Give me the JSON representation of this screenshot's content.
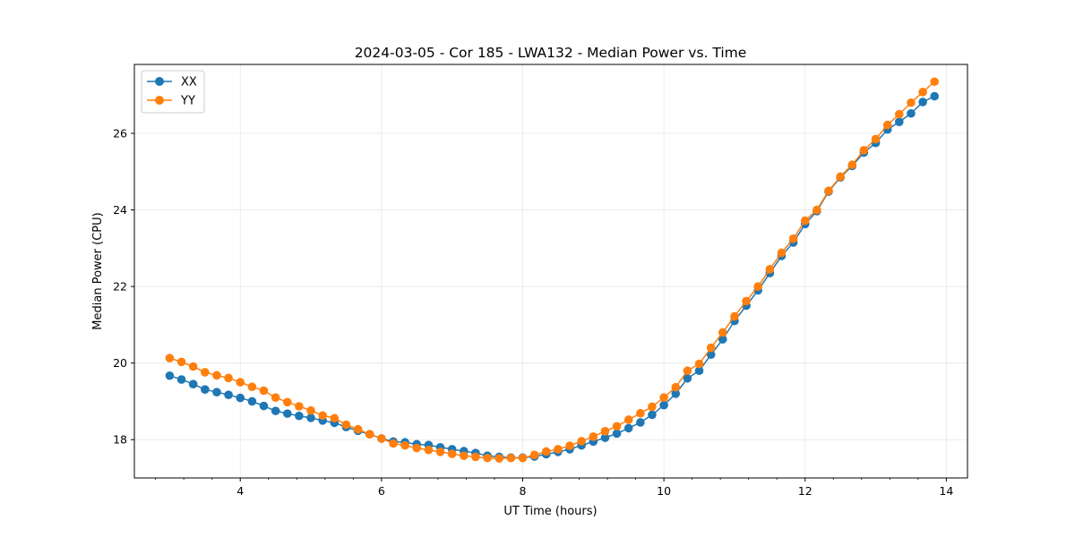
{
  "chart_data": {
    "type": "line",
    "title": "2024-03-05 - Cor 185 - LWA132 - Median Power vs. Time",
    "xlabel": "UT Time (hours)",
    "ylabel": "Median Power (CPU)",
    "xlim": [
      2.5,
      14.3
    ],
    "ylim": [
      17.0,
      27.8
    ],
    "x_ticks": [
      4,
      6,
      8,
      10,
      12,
      14
    ],
    "x_tick_labels": [
      "4",
      "6",
      "8",
      "10",
      "12",
      "14"
    ],
    "y_ticks": [
      18,
      20,
      22,
      24,
      26
    ],
    "y_tick_labels": [
      "18",
      "20",
      "22",
      "24",
      "26"
    ],
    "grid": true,
    "legend_position": "top-left",
    "x": [
      3.0,
      3.167,
      3.333,
      3.5,
      3.667,
      3.833,
      4.0,
      4.167,
      4.333,
      4.5,
      4.667,
      4.833,
      5.0,
      5.167,
      5.333,
      5.5,
      5.667,
      5.833,
      6.0,
      6.167,
      6.333,
      6.5,
      6.667,
      6.833,
      7.0,
      7.167,
      7.333,
      7.5,
      7.667,
      7.833,
      8.0,
      8.167,
      8.333,
      8.5,
      8.667,
      8.833,
      9.0,
      9.167,
      9.333,
      9.5,
      9.667,
      9.833,
      10.0,
      10.167,
      10.333,
      10.5,
      10.667,
      10.833,
      11.0,
      11.167,
      11.333,
      11.5,
      11.667,
      11.833,
      12.0,
      12.167,
      12.333,
      12.5,
      12.667,
      12.833,
      13.0,
      13.167,
      13.333,
      13.5,
      13.667,
      13.833
    ],
    "series": [
      {
        "name": "XX",
        "color": "#1f77b4",
        "values": [
          19.67,
          19.57,
          19.45,
          19.31,
          19.24,
          19.17,
          19.09,
          19.0,
          18.88,
          18.75,
          18.68,
          18.62,
          18.57,
          18.5,
          18.44,
          18.33,
          18.23,
          18.14,
          18.03,
          17.95,
          17.93,
          17.88,
          17.86,
          17.8,
          17.75,
          17.7,
          17.65,
          17.58,
          17.55,
          17.53,
          17.53,
          17.56,
          17.62,
          17.68,
          17.75,
          17.85,
          17.95,
          18.05,
          18.16,
          18.3,
          18.45,
          18.65,
          18.9,
          19.2,
          19.6,
          19.8,
          20.22,
          20.62,
          21.1,
          21.5,
          21.9,
          22.35,
          22.8,
          23.15,
          23.63,
          23.97,
          24.48,
          24.85,
          25.15,
          25.5,
          25.75,
          26.1,
          26.3,
          26.52,
          26.82,
          26.97
        ]
      },
      {
        "name": "YY",
        "color": "#ff7f0e",
        "values": [
          20.13,
          20.03,
          19.91,
          19.76,
          19.68,
          19.61,
          19.5,
          19.38,
          19.28,
          19.1,
          18.98,
          18.87,
          18.76,
          18.63,
          18.56,
          18.39,
          18.27,
          18.14,
          18.03,
          17.9,
          17.85,
          17.78,
          17.73,
          17.68,
          17.63,
          17.58,
          17.55,
          17.52,
          17.51,
          17.52,
          17.52,
          17.6,
          17.69,
          17.75,
          17.84,
          17.96,
          18.08,
          18.22,
          18.35,
          18.52,
          18.69,
          18.86,
          19.1,
          19.37,
          19.8,
          19.98,
          20.4,
          20.8,
          21.22,
          21.62,
          22.0,
          22.45,
          22.88,
          23.25,
          23.72,
          24.0,
          24.5,
          24.87,
          25.18,
          25.56,
          25.85,
          26.22,
          26.5,
          26.8,
          27.08,
          27.35
        ]
      }
    ]
  }
}
